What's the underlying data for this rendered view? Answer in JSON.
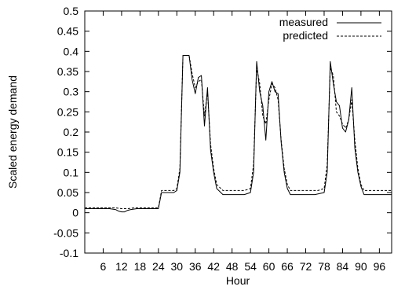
{
  "chart_data": {
    "type": "line",
    "xlabel": "Hour",
    "ylabel": "Scaled energy demand",
    "xlim": [
      0,
      100
    ],
    "ylim": [
      -0.1,
      0.5
    ],
    "xticks": [
      6,
      12,
      18,
      24,
      30,
      36,
      42,
      48,
      54,
      60,
      66,
      72,
      78,
      84,
      90,
      96
    ],
    "yticks": [
      -0.1,
      -0.05,
      0,
      0.05,
      0.1,
      0.15,
      0.2,
      0.25,
      0.3,
      0.35,
      0.4,
      0.45,
      0.5
    ],
    "xtick_labels": [
      "6",
      "12",
      "18",
      "24",
      "30",
      "36",
      "42",
      "48",
      "54",
      "60",
      "66",
      "72",
      "78",
      "84",
      "90",
      "96"
    ],
    "ytick_labels": [
      "-0.1",
      "-0.05",
      "0",
      "0.05",
      "0.1",
      "0.15",
      "0.2",
      "0.25",
      "0.3",
      "0.35",
      "0.4",
      "0.45",
      "0.5"
    ],
    "grid": false,
    "legend": "top-right",
    "series": [
      {
        "name": "measured",
        "style": "solid",
        "color": "#000000",
        "points": [
          [
            0,
            0.01
          ],
          [
            8,
            0.01
          ],
          [
            10,
            0.008
          ],
          [
            11,
            0.004
          ],
          [
            12,
            0.002
          ],
          [
            13,
            0.002
          ],
          [
            14,
            0.006
          ],
          [
            15,
            0.008
          ],
          [
            17,
            0.01
          ],
          [
            24,
            0.01
          ],
          [
            25,
            0.05
          ],
          [
            29,
            0.05
          ],
          [
            30,
            0.055
          ],
          [
            31,
            0.1
          ],
          [
            32,
            0.39
          ],
          [
            34,
            0.39
          ],
          [
            35,
            0.33
          ],
          [
            36,
            0.295
          ],
          [
            37,
            0.335
          ],
          [
            38,
            0.34
          ],
          [
            39,
            0.215
          ],
          [
            40,
            0.31
          ],
          [
            41,
            0.155
          ],
          [
            42,
            0.1
          ],
          [
            43,
            0.06
          ],
          [
            45,
            0.045
          ],
          [
            52,
            0.045
          ],
          [
            54,
            0.05
          ],
          [
            55,
            0.1
          ],
          [
            56,
            0.375
          ],
          [
            57,
            0.3
          ],
          [
            58,
            0.265
          ],
          [
            59,
            0.18
          ],
          [
            60,
            0.3
          ],
          [
            61,
            0.325
          ],
          [
            62,
            0.3
          ],
          [
            63,
            0.295
          ],
          [
            64,
            0.175
          ],
          [
            65,
            0.1
          ],
          [
            66,
            0.06
          ],
          [
            67,
            0.045
          ],
          [
            75,
            0.045
          ],
          [
            78,
            0.05
          ],
          [
            79,
            0.1
          ],
          [
            80,
            0.375
          ],
          [
            81,
            0.32
          ],
          [
            82,
            0.275
          ],
          [
            83,
            0.265
          ],
          [
            84,
            0.21
          ],
          [
            85,
            0.2
          ],
          [
            86,
            0.23
          ],
          [
            87,
            0.31
          ],
          [
            88,
            0.16
          ],
          [
            89,
            0.1
          ],
          [
            90,
            0.065
          ],
          [
            91,
            0.045
          ],
          [
            100,
            0.045
          ]
        ]
      },
      {
        "name": "predicted",
        "style": "dashed",
        "color": "#000000",
        "points": [
          [
            0,
            0.012
          ],
          [
            10,
            0.012
          ],
          [
            12,
            0.01
          ],
          [
            14,
            0.01
          ],
          [
            16,
            0.012
          ],
          [
            24,
            0.012
          ],
          [
            25,
            0.055
          ],
          [
            29,
            0.055
          ],
          [
            30,
            0.06
          ],
          [
            31,
            0.11
          ],
          [
            32,
            0.39
          ],
          [
            34,
            0.39
          ],
          [
            35,
            0.345
          ],
          [
            36,
            0.31
          ],
          [
            37,
            0.325
          ],
          [
            38,
            0.33
          ],
          [
            39,
            0.24
          ],
          [
            40,
            0.3
          ],
          [
            41,
            0.17
          ],
          [
            42,
            0.11
          ],
          [
            43,
            0.07
          ],
          [
            45,
            0.055
          ],
          [
            52,
            0.055
          ],
          [
            54,
            0.06
          ],
          [
            55,
            0.12
          ],
          [
            56,
            0.36
          ],
          [
            57,
            0.32
          ],
          [
            58,
            0.24
          ],
          [
            59,
            0.22
          ],
          [
            60,
            0.28
          ],
          [
            61,
            0.32
          ],
          [
            62,
            0.31
          ],
          [
            63,
            0.28
          ],
          [
            64,
            0.18
          ],
          [
            65,
            0.11
          ],
          [
            66,
            0.07
          ],
          [
            67,
            0.055
          ],
          [
            76,
            0.055
          ],
          [
            78,
            0.06
          ],
          [
            79,
            0.12
          ],
          [
            80,
            0.36
          ],
          [
            81,
            0.34
          ],
          [
            82,
            0.25
          ],
          [
            83,
            0.24
          ],
          [
            84,
            0.22
          ],
          [
            85,
            0.21
          ],
          [
            86,
            0.23
          ],
          [
            87,
            0.28
          ],
          [
            88,
            0.18
          ],
          [
            89,
            0.11
          ],
          [
            90,
            0.07
          ],
          [
            91,
            0.055
          ],
          [
            100,
            0.055
          ]
        ]
      }
    ]
  }
}
